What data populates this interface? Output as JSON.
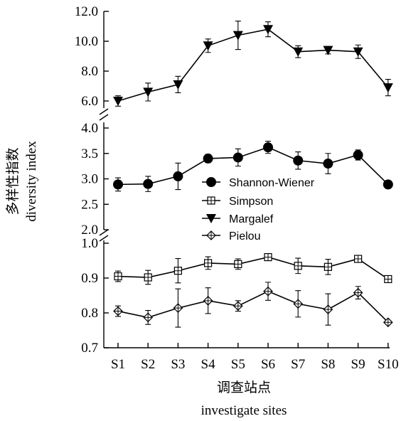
{
  "chart_data": {
    "type": "line",
    "categories": [
      "S1",
      "S2",
      "S3",
      "S4",
      "S5",
      "S6",
      "S7",
      "S8",
      "S9",
      "S10"
    ],
    "xlabel": "调查站点",
    "xlabel_en": "investigate sites",
    "ylabel": "多样性指数",
    "ylabel_en": "diversity index",
    "ylim_top": [
      6.0,
      12.0
    ],
    "ylim_middle": [
      2.0,
      4.0
    ],
    "ylim_bottom": [
      0.7,
      1.0
    ],
    "yticks_top": [
      "6.0",
      "8.0",
      "10.0",
      "12.0"
    ],
    "yticks_middle": [
      "2.0",
      "2.5",
      "3.0",
      "3.5",
      "4.0"
    ],
    "yticks_bottom": [
      "0.7",
      "0.8",
      "0.9",
      "1.0"
    ],
    "axis_breaks": true,
    "grid": false,
    "legend_position": "center-right",
    "series": [
      {
        "name": "Shannon-Wiener",
        "marker": "filled-circle",
        "panel": "middle",
        "values": [
          2.89,
          2.9,
          3.05,
          3.4,
          3.42,
          3.62,
          3.36,
          3.3,
          3.47,
          2.89
        ],
        "errors": [
          0.13,
          0.15,
          0.26,
          0.08,
          0.17,
          0.12,
          0.17,
          0.2,
          0.1,
          0.0
        ]
      },
      {
        "name": "Simpson",
        "marker": "square-plus",
        "panel": "bottom",
        "values": [
          0.905,
          0.902,
          0.921,
          0.943,
          0.94,
          0.96,
          0.935,
          0.932,
          0.955,
          0.897
        ],
        "errors": [
          0.015,
          0.02,
          0.035,
          0.018,
          0.015,
          0.01,
          0.022,
          0.022,
          0.01,
          0.006
        ]
      },
      {
        "name": "Margalef",
        "marker": "filled-triangle-down",
        "panel": "top",
        "values": [
          6.0,
          6.6,
          7.1,
          9.7,
          10.4,
          10.8,
          9.3,
          9.4,
          9.3,
          6.9
        ],
        "errors": [
          0.35,
          0.6,
          0.55,
          0.45,
          0.95,
          0.5,
          0.4,
          0.25,
          0.45,
          0.55
        ]
      },
      {
        "name": "Pielou",
        "marker": "diamond-plus",
        "panel": "bottom",
        "values": [
          0.805,
          0.787,
          0.814,
          0.835,
          0.82,
          0.862,
          0.826,
          0.81,
          0.858,
          0.773
        ],
        "errors": [
          0.015,
          0.02,
          0.055,
          0.037,
          0.015,
          0.026,
          0.038,
          0.045,
          0.018,
          0.004
        ]
      }
    ]
  }
}
